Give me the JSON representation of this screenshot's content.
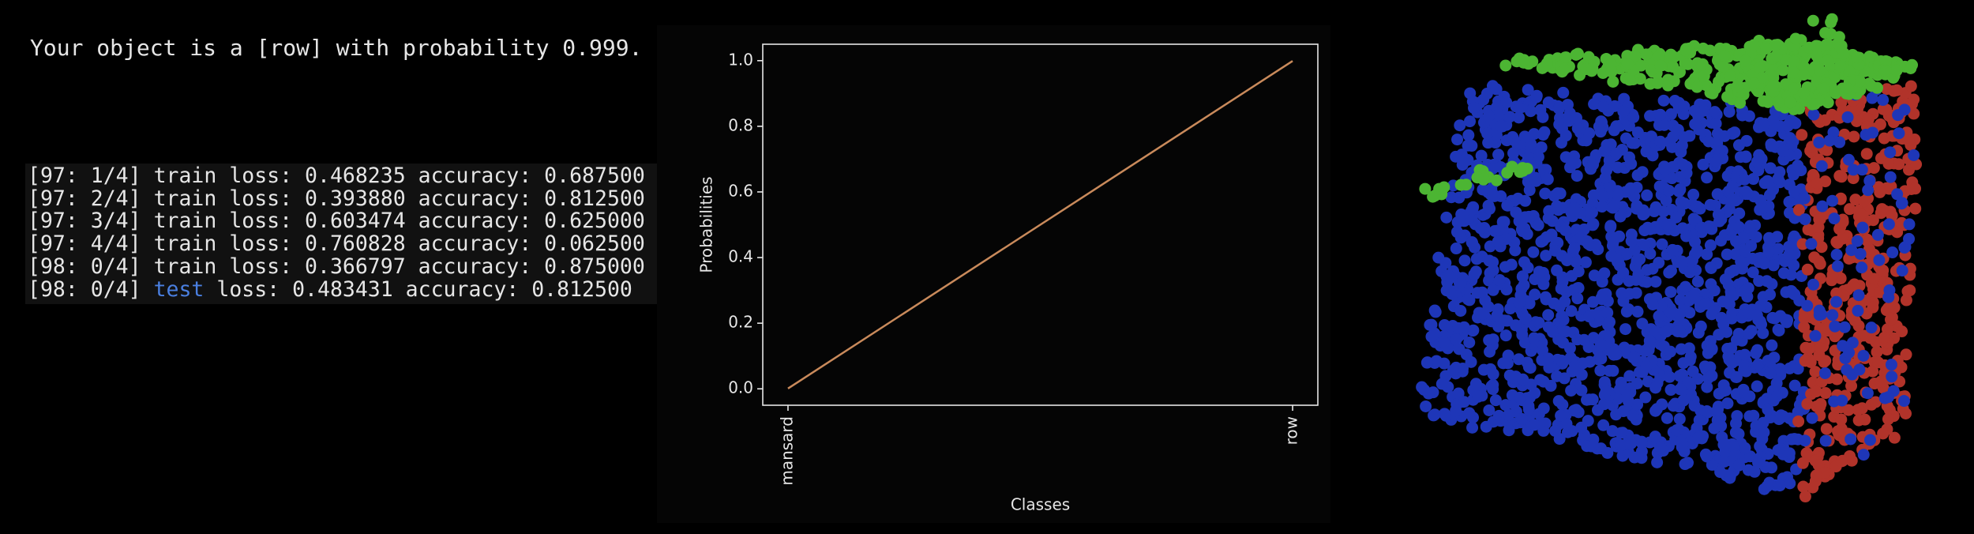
{
  "header": "Your object is a [row] with probability 0.999.",
  "log": [
    {
      "epoch": "[97: 1/4]",
      "mode": "train",
      "text": "loss: 0.468235 accuracy: 0.687500"
    },
    {
      "epoch": "[97: 2/4]",
      "mode": "train",
      "text": "loss: 0.393880 accuracy: 0.812500"
    },
    {
      "epoch": "[97: 3/4]",
      "mode": "train",
      "text": "loss: 0.603474 accuracy: 0.625000"
    },
    {
      "epoch": "[97: 4/4]",
      "mode": "train",
      "text": "loss: 0.760828 accuracy: 0.062500"
    },
    {
      "epoch": "[98: 0/4]",
      "mode": "train",
      "text": "loss: 0.366797 accuracy: 0.875000"
    },
    {
      "epoch": "[98: 0/4]",
      "mode": "test",
      "text": "loss: 0.483431 accuracy: 0.812500"
    }
  ],
  "chart_data": {
    "type": "line",
    "xlabel": "Classes",
    "ylabel": "Probabilities",
    "categories": [
      "mansard",
      "row"
    ],
    "values": [
      0.001,
      0.999
    ],
    "color": "#c98a5b",
    "ylim": [
      -0.05,
      1.05
    ],
    "yticks": [
      {
        "value": 0,
        "label": "0.0"
      },
      0.2,
      0.4,
      0.6,
      0.8,
      {
        "value": 1,
        "label": "1.0"
      }
    ]
  }
}
